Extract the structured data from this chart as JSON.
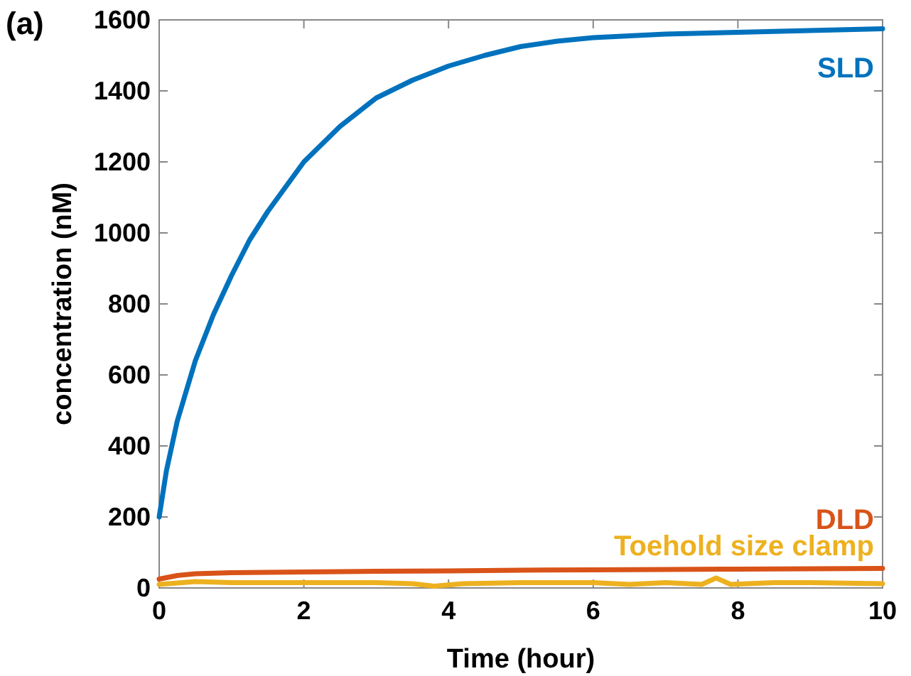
{
  "chart_data": {
    "type": "line",
    "xlabel": "Time (hour)",
    "ylabel": "concentration (nM)",
    "annotations": [
      "(a)"
    ],
    "xlim": [
      0,
      10
    ],
    "ylim": [
      0,
      1600
    ],
    "xticks": [
      0,
      2,
      4,
      6,
      8,
      10
    ],
    "yticks": [
      0,
      200,
      400,
      600,
      800,
      1000,
      1200,
      1400,
      1600
    ],
    "grid": false,
    "line_style": "solid",
    "series": [
      {
        "name": "SLD",
        "color": "#0072bd",
        "x": [
          0,
          0.1,
          0.25,
          0.5,
          0.75,
          1,
          1.25,
          1.5,
          2,
          2.5,
          3,
          3.5,
          4,
          4.5,
          5,
          5.5,
          6,
          7,
          8,
          9,
          10
        ],
        "values": [
          200,
          330,
          470,
          640,
          770,
          880,
          980,
          1060,
          1200,
          1300,
          1380,
          1430,
          1470,
          1500,
          1525,
          1540,
          1550,
          1560,
          1565,
          1570,
          1575
        ]
      },
      {
        "name": "DLD",
        "color": "#d95319",
        "x": [
          0,
          0.25,
          0.5,
          1,
          2,
          3,
          4,
          5,
          6,
          7,
          8,
          9,
          10
        ],
        "values": [
          25,
          35,
          40,
          43,
          45,
          47,
          48,
          50,
          51,
          52,
          53,
          54,
          55
        ]
      },
      {
        "name": "Toehold size clamp",
        "color": "#edb120",
        "x": [
          0,
          0.5,
          1,
          2,
          3,
          3.5,
          3.8,
          4.2,
          5,
          6,
          6.5,
          7,
          7.5,
          7.7,
          7.9,
          8.5,
          9,
          10
        ],
        "values": [
          10,
          18,
          15,
          15,
          15,
          12,
          5,
          12,
          15,
          15,
          10,
          15,
          10,
          28,
          10,
          15,
          15,
          12
        ]
      }
    ]
  }
}
